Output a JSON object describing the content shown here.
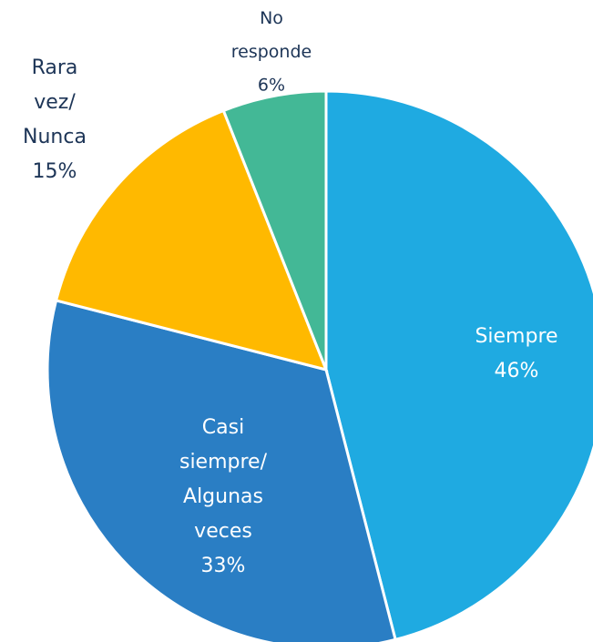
{
  "chart_data": {
    "type": "pie",
    "categories": [
      "Siempre",
      "Casi siempre/ Algunas veces",
      "Rara vez/ Nunca",
      "No responde"
    ],
    "values": [
      46,
      33,
      15,
      6
    ],
    "value_labels": [
      "46%",
      "33%",
      "15%",
      "6%"
    ],
    "colors": [
      "#1FAAE1",
      "#2A7EC4",
      "#FFB900",
      "#43B896"
    ]
  }
}
